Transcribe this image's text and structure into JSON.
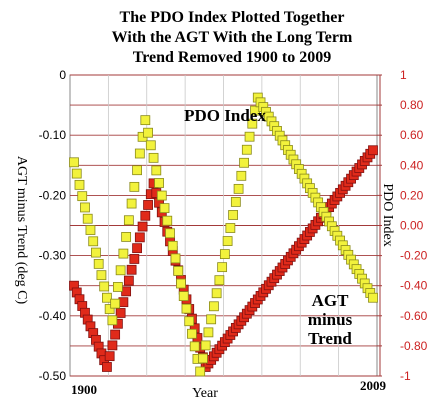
{
  "chart_data": {
    "type": "line",
    "title_lines": [
      "The PDO Index Plotted Together",
      "With the AGT With the Long Term",
      "Trend Removed 1900 to 2009"
    ],
    "xlabel": "Year",
    "x_start_label": "1900",
    "x_end_label": "2009",
    "xlim": [
      1900,
      2009
    ],
    "left_axis": {
      "label": "AGT minus Trend (deg C)",
      "ylim": [
        -0.5,
        0.0
      ],
      "ticks": [
        "0",
        "-0.10",
        "-0.20",
        "-0.30",
        "-0.40",
        "-0.50"
      ],
      "tick_values": [
        0.0,
        -0.1,
        -0.2,
        -0.3,
        -0.4,
        -0.5
      ]
    },
    "right_axis": {
      "label": "PDO Index",
      "ylim": [
        -1.0,
        1.0
      ],
      "ticks": [
        "1",
        "0.80",
        "0.60",
        "0.40",
        "0.20",
        "0.00",
        "-0.20",
        "-0.40",
        "-0.60",
        "-0.80",
        "-1"
      ],
      "tick_values": [
        1.0,
        0.8,
        0.6,
        0.4,
        0.2,
        0.0,
        -0.2,
        -0.4,
        -0.6,
        -0.8,
        -1.0
      ]
    },
    "grid": true,
    "annotations": {
      "pdo": "PDO Index",
      "agt_lines": [
        "AGT",
        "minus",
        "Trend"
      ]
    },
    "series": [
      {
        "name": "PDO Index",
        "axis": "right",
        "color": "#f2f23c",
        "stroke": "#8a8a1a",
        "points": [
          [
            1900,
            0.42
          ],
          [
            1914,
            -0.63
          ],
          [
            1926,
            0.7
          ],
          [
            1946,
            -0.97
          ],
          [
            1967,
            0.85
          ],
          [
            2009,
            -0.48
          ]
        ]
      },
      {
        "name": "AGT minus Trend",
        "axis": "left",
        "color": "#e02a1a",
        "stroke": "#801010",
        "points": [
          [
            1900,
            -0.35
          ],
          [
            1912,
            -0.485
          ],
          [
            1929,
            -0.18
          ],
          [
            1948,
            -0.485
          ],
          [
            2009,
            -0.125
          ]
        ]
      }
    ]
  }
}
